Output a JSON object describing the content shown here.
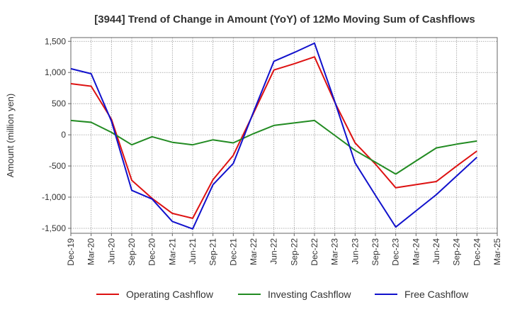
{
  "chart_data": {
    "type": "line",
    "title": "[3944]  Trend of Change in Amount (YoY) of 12Mo Moving Sum of Cashflows",
    "xlabel": "",
    "ylabel": "Amount (million yen)",
    "ylim": [
      -1580,
      1560
    ],
    "yticks": [
      1500,
      1000,
      500,
      0,
      -500,
      -1000,
      -1500
    ],
    "ytick_labels": [
      "1,500",
      "1,000",
      "500",
      "0",
      "-500",
      "-1,000",
      "-1,500"
    ],
    "categories": [
      "Dec-19",
      "Mar-20",
      "Jun-20",
      "Sep-20",
      "Dec-20",
      "Mar-21",
      "Jun-21",
      "Sep-21",
      "Dec-21",
      "Mar-22",
      "Jun-22",
      "Sep-22",
      "Dec-22",
      "Mar-23",
      "Jun-23",
      "Sep-23",
      "Dec-23",
      "Mar-24",
      "Jun-24",
      "Sep-24",
      "Dec-24",
      "Mar-25"
    ],
    "grid": true,
    "legend_position": "bottom",
    "series": [
      {
        "name": "Operating Cashflow",
        "color": "#dd1111",
        "values": [
          820,
          780,
          250,
          -730,
          -1020,
          -1260,
          -1340,
          -720,
          -330,
          350,
          1040,
          1140,
          1250,
          520,
          -130,
          -470,
          -850,
          -800,
          -750,
          -500,
          -260,
          null
        ]
      },
      {
        "name": "Investing Cashflow",
        "color": "#228b22",
        "values": [
          230,
          200,
          40,
          -160,
          -30,
          -120,
          -160,
          -80,
          -130,
          20,
          150,
          190,
          230,
          -10,
          -250,
          -440,
          -630,
          -420,
          -210,
          -150,
          -100,
          null
        ]
      },
      {
        "name": "Free Cashflow",
        "color": "#1111cc",
        "values": [
          1060,
          980,
          220,
          -890,
          -1030,
          -1390,
          -1510,
          -800,
          -460,
          370,
          1180,
          1320,
          1470,
          530,
          -450,
          -970,
          -1480,
          -1220,
          -960,
          -660,
          -360,
          null
        ]
      }
    ]
  }
}
